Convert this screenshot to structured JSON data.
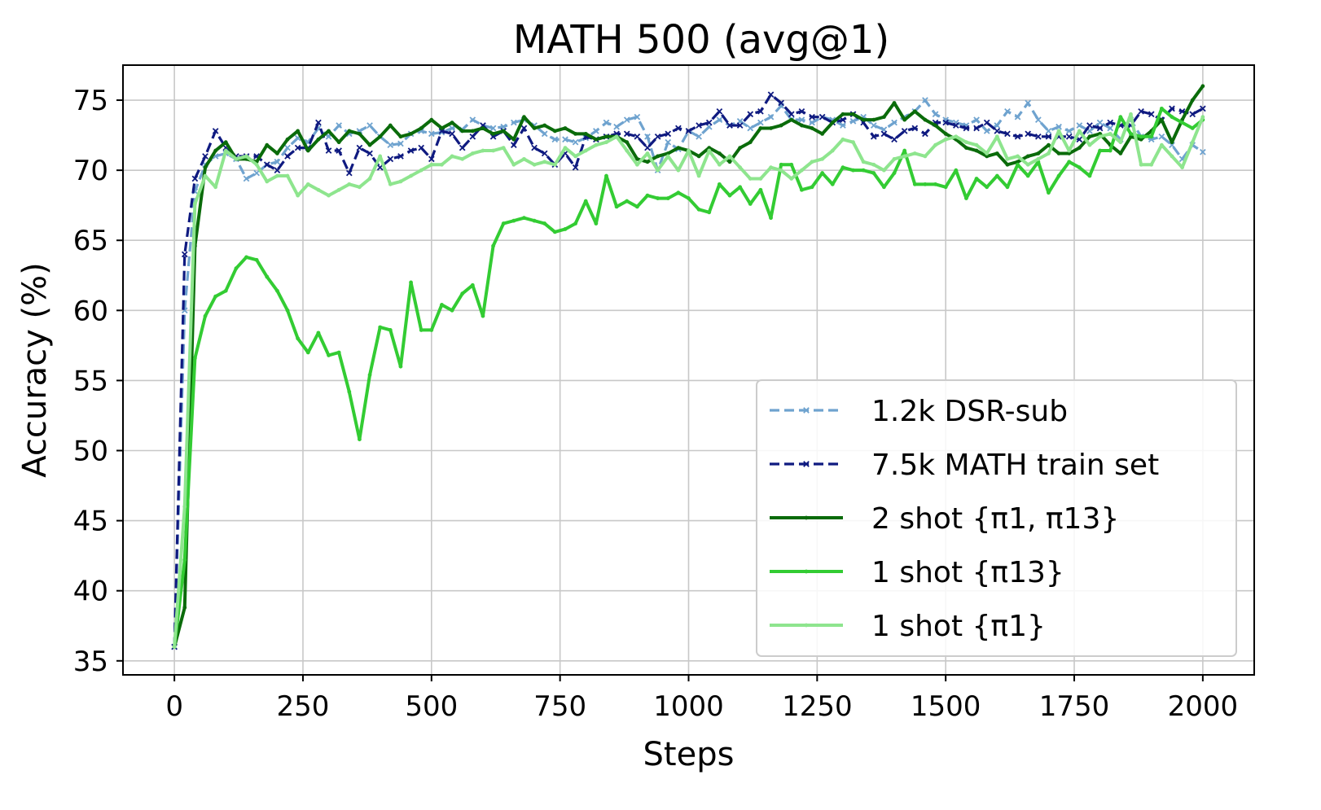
{
  "chart_data": {
    "type": "line",
    "title": "MATH 500 (avg@1)",
    "xlabel": "Steps",
    "ylabel": "Accuracy (%)",
    "xlim": [
      -100,
      2100
    ],
    "ylim": [
      34,
      77.5
    ],
    "xticks": [
      0,
      250,
      500,
      750,
      1000,
      1250,
      1500,
      1750,
      2000
    ],
    "yticks": [
      35,
      40,
      45,
      50,
      55,
      60,
      65,
      70,
      75
    ],
    "grid": true,
    "legend_position": "lower-right",
    "series": [
      {
        "name": "1.2k DSR-sub",
        "color": "#6fa3cf",
        "dashed": true,
        "marker": "x",
        "x": [
          0,
          20,
          40,
          60,
          80,
          100,
          120,
          140,
          160,
          180,
          200,
          220,
          240,
          260,
          280,
          300,
          320,
          340,
          360,
          380,
          400,
          420,
          440,
          460,
          480,
          500,
          520,
          540,
          560,
          580,
          600,
          620,
          640,
          660,
          680,
          700,
          720,
          740,
          760,
          780,
          800,
          820,
          840,
          860,
          880,
          900,
          920,
          940,
          960,
          980,
          1000,
          1020,
          1040,
          1060,
          1080,
          1100,
          1120,
          1140,
          1160,
          1180,
          1200,
          1220,
          1240,
          1260,
          1280,
          1300,
          1320,
          1340,
          1360,
          1380,
          1400,
          1420,
          1440,
          1460,
          1480,
          1500,
          1520,
          1540,
          1560,
          1580,
          1600,
          1620,
          1640,
          1660,
          1680,
          1700,
          1720,
          1740,
          1760,
          1780,
          1800,
          1820,
          1840,
          1860,
          1880,
          1900,
          1920,
          1940,
          1960,
          1980,
          2000
        ],
        "y": [
          36.0,
          60.0,
          68.5,
          70.4,
          71.0,
          71.2,
          70.8,
          69.4,
          69.8,
          70.4,
          70.6,
          71.6,
          72.3,
          72.0,
          73.0,
          72.4,
          73.2,
          72.6,
          72.8,
          73.2,
          72.4,
          71.8,
          71.9,
          72.6,
          72.8,
          72.6,
          72.7,
          73.0,
          72.9,
          73.6,
          73.2,
          73.0,
          73.1,
          73.4,
          73.6,
          73.2,
          72.6,
          72.2,
          72.2,
          72.0,
          72.3,
          72.8,
          73.4,
          73.1,
          73.6,
          73.8,
          72.4,
          70.0,
          72.0,
          71.5,
          72.8,
          72.4,
          73.1,
          73.6,
          73.2,
          73.5,
          73.0,
          73.4,
          73.8,
          74.6,
          73.6,
          73.6,
          73.4,
          73.8,
          73.6,
          73.2,
          73.5,
          73.8,
          73.2,
          72.9,
          73.4,
          73.8,
          74.2,
          75.0,
          74.0,
          73.6,
          73.4,
          73.2,
          73.6,
          72.8,
          73.2,
          74.2,
          73.8,
          74.8,
          73.6,
          72.8,
          73.1,
          72.8,
          73.2,
          72.8,
          73.4,
          73.0,
          72.2,
          73.6,
          72.4,
          72.2,
          72.4,
          71.8,
          70.8,
          71.8,
          71.3
        ]
      },
      {
        "name": "7.5k MATH train set",
        "color": "#0f1a80",
        "dashed": true,
        "marker": "x",
        "x": [
          0,
          20,
          40,
          60,
          80,
          100,
          120,
          140,
          160,
          180,
          200,
          220,
          240,
          260,
          280,
          300,
          320,
          340,
          360,
          380,
          400,
          420,
          440,
          460,
          480,
          500,
          520,
          540,
          560,
          580,
          600,
          620,
          640,
          660,
          680,
          700,
          720,
          740,
          760,
          780,
          800,
          820,
          840,
          860,
          880,
          900,
          920,
          940,
          960,
          980,
          1000,
          1020,
          1040,
          1060,
          1080,
          1100,
          1120,
          1140,
          1160,
          1180,
          1200,
          1220,
          1240,
          1260,
          1280,
          1300,
          1320,
          1340,
          1360,
          1380,
          1400,
          1420,
          1440,
          1460,
          1480,
          1500,
          1520,
          1540,
          1560,
          1580,
          1600,
          1620,
          1640,
          1660,
          1680,
          1700,
          1720,
          1740,
          1760,
          1780,
          1800,
          1820,
          1840,
          1860,
          1880,
          1900,
          1920,
          1940,
          1960,
          1980,
          2000
        ],
        "y": [
          36.0,
          64.0,
          69.4,
          71.0,
          72.8,
          71.6,
          71.0,
          71.0,
          71.0,
          70.4,
          70.0,
          71.0,
          71.6,
          71.6,
          73.4,
          71.4,
          71.4,
          69.8,
          71.6,
          71.2,
          70.2,
          70.8,
          71.0,
          71.4,
          71.6,
          70.8,
          72.8,
          72.6,
          71.6,
          72.4,
          73.2,
          72.4,
          72.8,
          71.8,
          73.0,
          71.6,
          71.2,
          70.4,
          71.2,
          70.2,
          72.4,
          72.2,
          72.4,
          72.6,
          72.6,
          72.4,
          71.6,
          72.4,
          72.6,
          73.0,
          72.8,
          73.2,
          73.4,
          74.2,
          73.2,
          73.2,
          74.0,
          74.2,
          75.4,
          74.8,
          74.0,
          74.2,
          73.8,
          73.8,
          73.4,
          73.6,
          74.0,
          73.4,
          72.4,
          72.6,
          72.2,
          72.8,
          73.0,
          72.6,
          73.4,
          73.4,
          73.2,
          73.0,
          73.0,
          73.4,
          72.8,
          72.6,
          72.4,
          72.6,
          72.4,
          72.4,
          72.4,
          72.4,
          72.2,
          73.2,
          73.0,
          73.4,
          73.2,
          73.2,
          74.2,
          74.0,
          73.6,
          74.4,
          74.2,
          74.0,
          74.4
        ]
      },
      {
        "name": "2 shot {π1, π13}",
        "color": "#0a6b0a",
        "dashed": false,
        "marker": "dot",
        "x": [
          0,
          20,
          40,
          60,
          80,
          100,
          120,
          140,
          160,
          180,
          200,
          220,
          240,
          260,
          280,
          300,
          320,
          340,
          360,
          380,
          400,
          420,
          440,
          460,
          480,
          500,
          520,
          540,
          560,
          580,
          600,
          620,
          640,
          660,
          680,
          700,
          720,
          740,
          760,
          780,
          800,
          820,
          840,
          860,
          880,
          900,
          920,
          940,
          960,
          980,
          1000,
          1020,
          1040,
          1060,
          1080,
          1100,
          1120,
          1140,
          1160,
          1180,
          1200,
          1220,
          1240,
          1260,
          1280,
          1300,
          1320,
          1340,
          1360,
          1380,
          1400,
          1420,
          1440,
          1460,
          1480,
          1500,
          1520,
          1540,
          1560,
          1580,
          1600,
          1620,
          1640,
          1660,
          1680,
          1700,
          1720,
          1740,
          1760,
          1780,
          1800,
          1820,
          1840,
          1860,
          1880,
          1900,
          1920,
          1940,
          1960,
          1980,
          2000
        ],
        "y": [
          36.0,
          38.8,
          64.6,
          70.2,
          71.4,
          72.0,
          70.8,
          70.8,
          70.6,
          71.8,
          71.2,
          72.2,
          72.8,
          71.4,
          72.2,
          72.8,
          72.0,
          72.8,
          72.6,
          71.8,
          72.4,
          73.2,
          72.4,
          72.6,
          73.0,
          73.6,
          73.0,
          73.4,
          72.8,
          72.8,
          73.0,
          72.6,
          72.8,
          72.2,
          73.8,
          73.0,
          73.2,
          72.8,
          73.0,
          72.6,
          72.6,
          72.2,
          72.4,
          72.4,
          72.0,
          70.8,
          70.6,
          71.0,
          71.2,
          71.6,
          71.4,
          71.0,
          71.6,
          71.2,
          70.6,
          71.6,
          72.0,
          73.0,
          73.0,
          73.2,
          73.6,
          73.2,
          73.0,
          72.6,
          73.4,
          74.0,
          74.0,
          73.6,
          73.6,
          73.8,
          74.8,
          73.6,
          74.2,
          73.6,
          73.2,
          72.6,
          72.2,
          71.6,
          71.4,
          71.0,
          71.2,
          70.4,
          70.6,
          71.0,
          71.2,
          71.8,
          71.2,
          71.2,
          71.6,
          72.4,
          72.6,
          71.8,
          71.2,
          72.4,
          72.2,
          72.8,
          73.6,
          72.0,
          73.6,
          75.0,
          76.0
        ]
      },
      {
        "name": "1 shot {π13}",
        "color": "#33cc33",
        "dashed": false,
        "marker": "dot",
        "x": [
          0,
          20,
          40,
          60,
          80,
          100,
          120,
          140,
          160,
          180,
          200,
          220,
          240,
          260,
          280,
          300,
          320,
          340,
          360,
          380,
          400,
          420,
          440,
          460,
          480,
          500,
          520,
          540,
          560,
          580,
          600,
          620,
          640,
          660,
          680,
          700,
          720,
          740,
          760,
          780,
          800,
          820,
          840,
          860,
          880,
          900,
          920,
          940,
          960,
          980,
          1000,
          1020,
          1040,
          1060,
          1080,
          1100,
          1120,
          1140,
          1160,
          1180,
          1200,
          1220,
          1240,
          1260,
          1280,
          1300,
          1320,
          1340,
          1360,
          1380,
          1400,
          1420,
          1440,
          1460,
          1480,
          1500,
          1520,
          1540,
          1560,
          1580,
          1600,
          1620,
          1640,
          1660,
          1680,
          1700,
          1720,
          1740,
          1760,
          1780,
          1800,
          1820,
          1840,
          1860,
          1880,
          1900,
          1920,
          1940,
          1960,
          1980,
          2000
        ],
        "y": [
          36.0,
          42.2,
          56.6,
          59.6,
          61.0,
          61.4,
          63.0,
          63.8,
          63.6,
          62.4,
          61.4,
          60.0,
          58.0,
          57.0,
          58.4,
          56.8,
          57.0,
          54.2,
          50.8,
          55.4,
          58.8,
          58.6,
          56.0,
          62.0,
          58.6,
          58.6,
          60.4,
          60.0,
          61.2,
          61.8,
          59.6,
          64.6,
          66.2,
          66.4,
          66.6,
          66.4,
          66.2,
          65.6,
          65.8,
          66.2,
          67.8,
          66.2,
          69.6,
          67.4,
          67.8,
          67.4,
          68.2,
          68.0,
          68.0,
          68.4,
          68.0,
          67.2,
          67.0,
          69.0,
          68.2,
          68.8,
          67.6,
          68.6,
          66.6,
          70.4,
          70.4,
          68.6,
          68.8,
          69.8,
          69.0,
          70.2,
          70.0,
          70.0,
          69.8,
          68.8,
          69.8,
          71.4,
          69.0,
          69.0,
          69.0,
          68.8,
          70.0,
          68.0,
          69.4,
          68.8,
          69.6,
          68.8,
          70.4,
          69.6,
          70.6,
          68.4,
          69.6,
          70.6,
          70.2,
          69.6,
          71.4,
          71.4,
          73.8,
          72.6,
          72.4,
          72.4,
          74.4,
          73.8,
          73.4,
          73.0,
          73.6
        ]
      },
      {
        "name": "1 shot {π1}",
        "color": "#8ee58e",
        "dashed": false,
        "marker": "dot",
        "x": [
          0,
          20,
          40,
          60,
          80,
          100,
          120,
          140,
          160,
          180,
          200,
          220,
          240,
          260,
          280,
          300,
          320,
          340,
          360,
          380,
          400,
          420,
          440,
          460,
          480,
          500,
          520,
          540,
          560,
          580,
          600,
          620,
          640,
          660,
          680,
          700,
          720,
          740,
          760,
          780,
          800,
          820,
          840,
          860,
          880,
          900,
          920,
          940,
          960,
          980,
          1000,
          1020,
          1040,
          1060,
          1080,
          1100,
          1120,
          1140,
          1160,
          1180,
          1200,
          1220,
          1240,
          1260,
          1280,
          1300,
          1320,
          1340,
          1360,
          1380,
          1400,
          1420,
          1440,
          1460,
          1480,
          1500,
          1520,
          1540,
          1560,
          1580,
          1600,
          1620,
          1640,
          1660,
          1680,
          1700,
          1720,
          1740,
          1760,
          1780,
          1800,
          1820,
          1840,
          1860,
          1880,
          1900,
          1920,
          1940,
          1960,
          1980,
          2000
        ],
        "y": [
          36.0,
          46.0,
          67.6,
          69.6,
          68.8,
          71.4,
          70.8,
          71.0,
          70.4,
          69.2,
          69.6,
          69.6,
          68.2,
          69.0,
          68.6,
          68.2,
          68.6,
          69.0,
          68.8,
          69.4,
          71.0,
          69.0,
          69.2,
          69.6,
          70.0,
          70.4,
          70.4,
          71.0,
          70.8,
          71.2,
          71.4,
          71.4,
          71.6,
          70.4,
          70.8,
          70.4,
          70.6,
          70.4,
          71.6,
          71.0,
          71.4,
          71.8,
          72.0,
          72.4,
          71.4,
          70.4,
          71.2,
          70.0,
          71.0,
          70.0,
          71.4,
          69.6,
          71.4,
          70.4,
          71.0,
          70.2,
          69.4,
          69.4,
          70.2,
          70.0,
          69.4,
          70.0,
          70.6,
          70.8,
          71.4,
          72.2,
          72.0,
          70.6,
          70.4,
          70.0,
          70.8,
          71.0,
          71.2,
          71.0,
          71.8,
          72.2,
          72.4,
          72.0,
          71.8,
          71.2,
          72.4,
          70.8,
          71.0,
          70.4,
          70.8,
          71.2,
          72.8,
          71.4,
          72.8,
          71.8,
          72.4,
          72.6,
          72.0,
          74.0,
          70.4,
          70.4,
          71.8,
          71.0,
          70.2,
          72.0,
          73.8
        ]
      }
    ]
  }
}
